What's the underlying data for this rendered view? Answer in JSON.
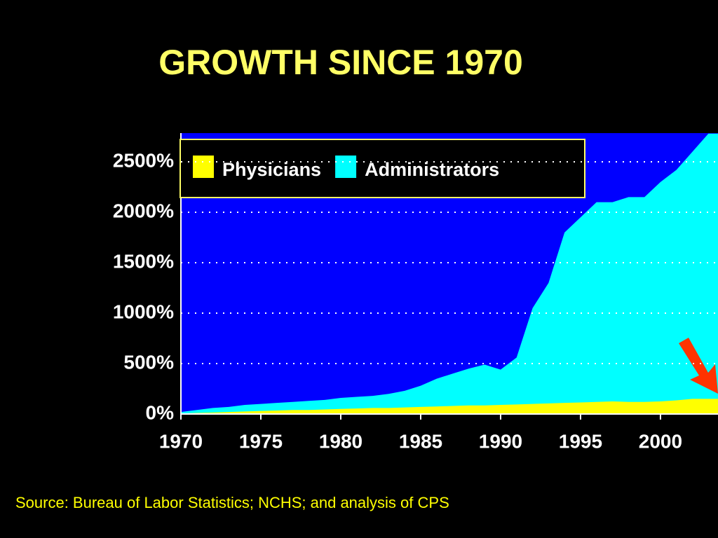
{
  "chart_data": {
    "type": "area",
    "title": "GROWTH SINCE 1970",
    "source": "Source: Bureau of Labor Statistics; NCHS; and analysis of CPS",
    "x": [
      1970,
      1971,
      1972,
      1973,
      1974,
      1975,
      1976,
      1977,
      1978,
      1979,
      1980,
      1981,
      1982,
      1983,
      1984,
      1985,
      1986,
      1987,
      1988,
      1989,
      1990,
      1991,
      1992,
      1993,
      1994,
      1995,
      1996,
      1997,
      1998,
      1999,
      2000,
      2001,
      2002,
      2003
    ],
    "series": [
      {
        "name": "Administrators",
        "color": "#00ffff",
        "values": [
          20,
          40,
          60,
          70,
          90,
          100,
          110,
          120,
          130,
          140,
          160,
          170,
          180,
          200,
          230,
          280,
          350,
          400,
          450,
          490,
          440,
          560,
          1050,
          1300,
          1800,
          1950,
          2100,
          2100,
          2150,
          2150,
          2300,
          2420,
          2600,
          2780
        ]
      },
      {
        "name": "Physicians",
        "color": "#ffff00",
        "values": [
          5,
          10,
          15,
          20,
          25,
          30,
          35,
          40,
          40,
          45,
          50,
          55,
          60,
          60,
          65,
          70,
          75,
          80,
          85,
          85,
          90,
          95,
          100,
          105,
          110,
          115,
          120,
          125,
          120,
          120,
          125,
          135,
          150,
          150
        ]
      }
    ],
    "legend_order": [
      "Physicians",
      "Administrators"
    ],
    "xlim": [
      1970,
      2003.6
    ],
    "xticks": [
      1970,
      1975,
      1980,
      1985,
      1990,
      1995,
      2000
    ],
    "ylim": [
      0,
      2785
    ],
    "yticks": [
      {
        "value": 0,
        "label": "0%"
      },
      {
        "value": 500,
        "label": "500%"
      },
      {
        "value": 1000,
        "label": "1000%"
      },
      {
        "value": 1500,
        "label": "1500%"
      },
      {
        "value": 2000,
        "label": "2000%"
      },
      {
        "value": 2500,
        "label": "2500%"
      }
    ],
    "grid": true
  }
}
